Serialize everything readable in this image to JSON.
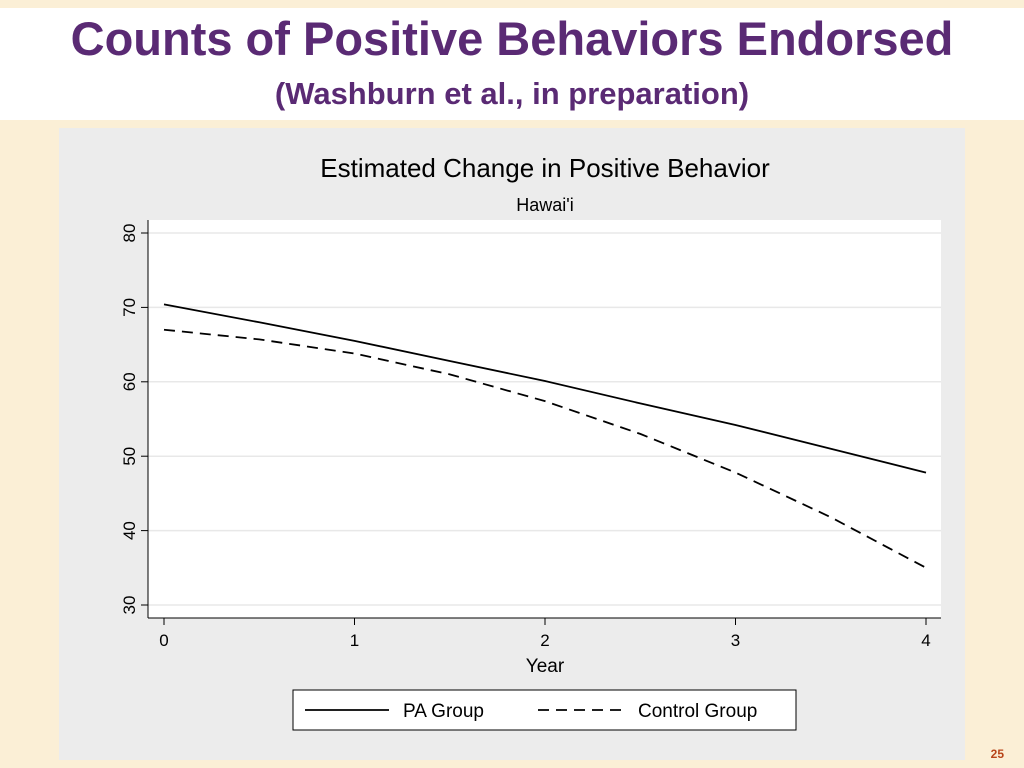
{
  "slide": {
    "title": "Counts of Positive Behaviors Endorsed",
    "subtitle": "(Washburn et al., in preparation)",
    "page_number": "25"
  },
  "colors": {
    "title": "#5a2a74",
    "slide_background": "#fbefd6",
    "plot_region": "#ececec",
    "plot_background": "#ffffff",
    "line": "#000000",
    "page_number": "#b8451a"
  },
  "chart_data": {
    "type": "line",
    "title": "Estimated Change in Positive Behavior",
    "subtitle": "Hawai'i",
    "xlabel": "Year",
    "ylabel": "",
    "xlim": [
      0,
      4
    ],
    "ylim": [
      30,
      80
    ],
    "xticks": [
      0,
      1,
      2,
      3,
      4
    ],
    "yticks": [
      30,
      40,
      50,
      60,
      70,
      80
    ],
    "grid": true,
    "legend_position": "bottom",
    "series": [
      {
        "name": "PA Group",
        "style": "solid",
        "x": [
          0,
          0.5,
          1,
          1.5,
          2,
          2.5,
          3,
          3.5,
          4
        ],
        "y": [
          70.4,
          68.0,
          65.5,
          62.8,
          60.1,
          57.1,
          54.2,
          51.0,
          47.8
        ]
      },
      {
        "name": "Control Group",
        "style": "dashed",
        "x": [
          0,
          0.5,
          1,
          1.5,
          2,
          2.5,
          3,
          3.5,
          4
        ],
        "y": [
          67.0,
          65.7,
          63.8,
          61.0,
          57.4,
          53.0,
          47.8,
          41.8,
          35.0
        ]
      }
    ]
  }
}
